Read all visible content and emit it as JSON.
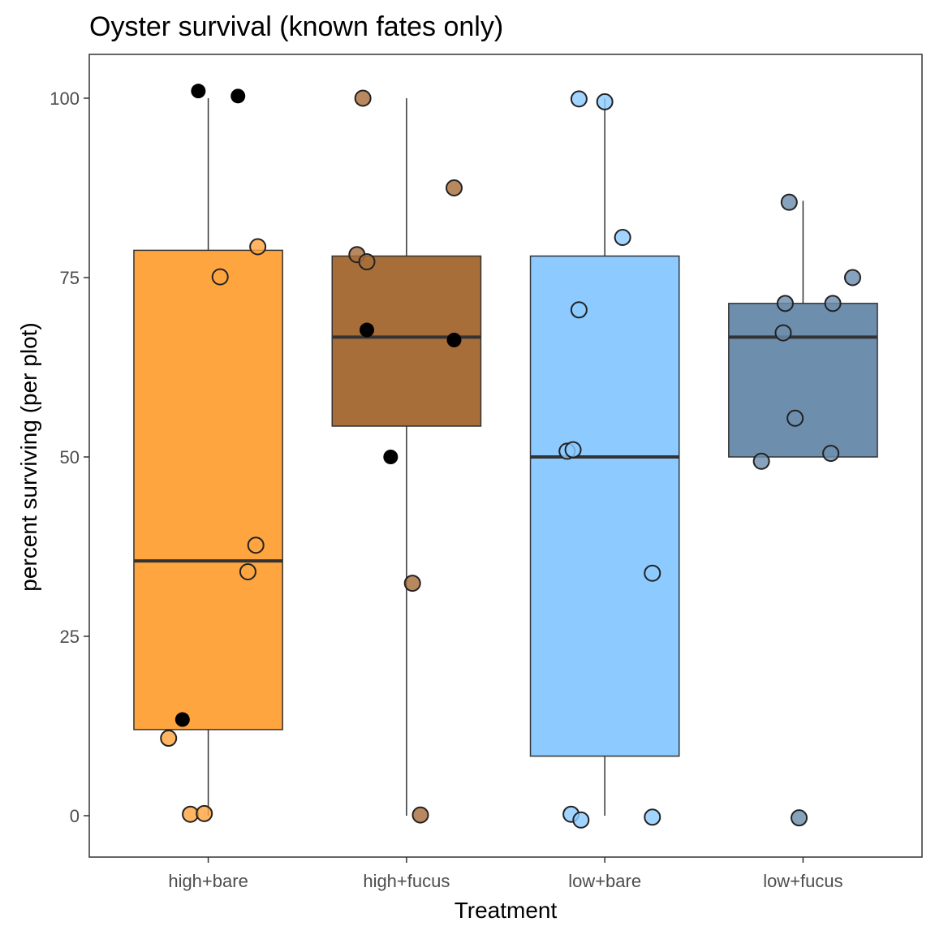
{
  "chart_data": {
    "type": "boxplot",
    "title": "Oyster survival (known fates only)",
    "xlabel": "Treatment",
    "ylabel": "percent surviving (per plot)",
    "ylim": [
      -5.5,
      105.5
    ],
    "yticks": [
      0,
      25,
      50,
      75,
      100
    ],
    "grid": false,
    "legend": "none",
    "categories": [
      "high+bare",
      "high+fucus",
      "low+bare",
      "low+fucus"
    ],
    "colors": {
      "high+bare": "#ffa53f",
      "high+fucus": "#a86e3a",
      "low+bare": "#8ccaff",
      "low+fucus": "#6d8ead",
      "outlier": "#000000",
      "frame": "#333333"
    },
    "boxes": [
      {
        "category": "high+bare",
        "lower_whisker": 0,
        "q1": 12,
        "median": 35.5,
        "q3": 78.8,
        "upper_whisker": 100
      },
      {
        "category": "high+fucus",
        "lower_whisker": 0,
        "q1": 54.3,
        "median": 66.7,
        "q3": 78,
        "upper_whisker": 100
      },
      {
        "category": "low+bare",
        "lower_whisker": 0,
        "q1": 8.3,
        "median": 50,
        "q3": 78,
        "upper_whisker": 100
      },
      {
        "category": "low+fucus",
        "lower_whisker": 50,
        "q1": 50,
        "median": 66.7,
        "q3": 71.4,
        "upper_whisker": 85.7
      }
    ],
    "outliers": [
      {
        "category": "high+bare",
        "offset": -0.05,
        "y": 101
      },
      {
        "category": "high+bare",
        "offset": 0.15,
        "y": 100.3
      },
      {
        "category": "high+bare",
        "offset": -0.13,
        "y": 13.4
      },
      {
        "category": "high+fucus",
        "offset": -0.2,
        "y": 67.7
      },
      {
        "category": "high+fucus",
        "offset": 0.24,
        "y": 66.3
      },
      {
        "category": "high+fucus",
        "offset": -0.08,
        "y": 50
      }
    ],
    "points": [
      {
        "category": "high+bare",
        "offset": 0.25,
        "y": 79.3
      },
      {
        "category": "high+bare",
        "offset": 0.06,
        "y": 75.1
      },
      {
        "category": "high+bare",
        "offset": 0.24,
        "y": 37.7
      },
      {
        "category": "high+bare",
        "offset": 0.2,
        "y": 34
      },
      {
        "category": "high+bare",
        "offset": -0.2,
        "y": 10.8
      },
      {
        "category": "high+bare",
        "offset": -0.09,
        "y": 0.2
      },
      {
        "category": "high+bare",
        "offset": -0.02,
        "y": 0.3
      },
      {
        "category": "high+fucus",
        "offset": -0.22,
        "y": 100
      },
      {
        "category": "high+fucus",
        "offset": 0.24,
        "y": 87.5
      },
      {
        "category": "high+fucus",
        "offset": -0.25,
        "y": 78.2
      },
      {
        "category": "high+fucus",
        "offset": -0.2,
        "y": 77.2
      },
      {
        "category": "high+fucus",
        "offset": 0.03,
        "y": 32.4
      },
      {
        "category": "high+fucus",
        "offset": 0.07,
        "y": 0.1
      },
      {
        "category": "low+bare",
        "offset": -0.13,
        "y": 99.9
      },
      {
        "category": "low+bare",
        "offset": 0.0,
        "y": 99.5
      },
      {
        "category": "low+bare",
        "offset": 0.09,
        "y": 80.6
      },
      {
        "category": "low+bare",
        "offset": -0.13,
        "y": 70.5
      },
      {
        "category": "low+bare",
        "offset": -0.19,
        "y": 50.8
      },
      {
        "category": "low+bare",
        "offset": -0.16,
        "y": 51
      },
      {
        "category": "low+bare",
        "offset": 0.24,
        "y": 33.8
      },
      {
        "category": "low+bare",
        "offset": -0.17,
        "y": 0.2
      },
      {
        "category": "low+bare",
        "offset": -0.12,
        "y": -0.6
      },
      {
        "category": "low+bare",
        "offset": 0.24,
        "y": -0.2
      },
      {
        "category": "low+fucus",
        "offset": -0.07,
        "y": 85.5
      },
      {
        "category": "low+fucus",
        "offset": 0.25,
        "y": 75
      },
      {
        "category": "low+fucus",
        "offset": -0.09,
        "y": 71.4
      },
      {
        "category": "low+fucus",
        "offset": 0.15,
        "y": 71.4
      },
      {
        "category": "low+fucus",
        "offset": -0.1,
        "y": 67.3
      },
      {
        "category": "low+fucus",
        "offset": -0.04,
        "y": 55.4
      },
      {
        "category": "low+fucus",
        "offset": 0.14,
        "y": 50.5
      },
      {
        "category": "low+fucus",
        "offset": -0.21,
        "y": 49.4
      },
      {
        "category": "low+fucus",
        "offset": -0.02,
        "y": -0.3
      }
    ]
  }
}
